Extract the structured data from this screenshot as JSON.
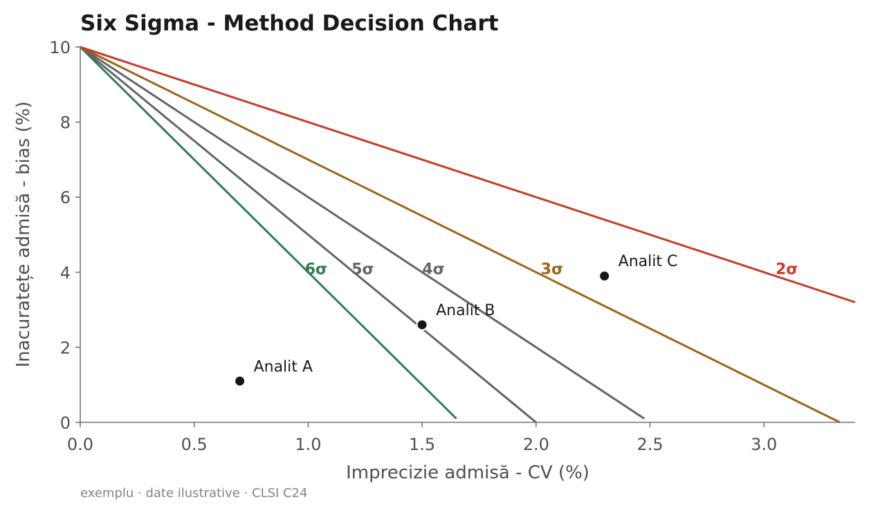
{
  "chart_data": {
    "type": "line",
    "title": "Six Sigma - Method Decision Chart",
    "xlabel": "Imprecizie admisă - CV (%)",
    "ylabel": "Inacuratețe admisă - bias (%)",
    "xlim": [
      0,
      3.4
    ],
    "ylim": [
      0,
      10
    ],
    "x_ticks": [
      "0.0",
      "0.5",
      "1.0",
      "1.5",
      "2.0",
      "2.5",
      "3.0"
    ],
    "x_tick_values": [
      0,
      0.5,
      1.0,
      1.5,
      2.0,
      2.5,
      3.0
    ],
    "y_ticks": [
      "0",
      "2",
      "4",
      "6",
      "8",
      "10"
    ],
    "y_tick_values": [
      0,
      2,
      4,
      6,
      8,
      10
    ],
    "grid": false,
    "total_allowable_error": 10,
    "series": [
      {
        "name": "6σ",
        "sigma": 6,
        "color": "#2e7d52",
        "x": [
          0,
          1.65
        ],
        "y": [
          10,
          0.1
        ],
        "label_at": [
          1.035,
          4.1
        ]
      },
      {
        "name": "5σ",
        "sigma": 5,
        "color": "#62646c",
        "x": [
          0,
          2.0
        ],
        "y": [
          10,
          0
        ],
        "label_at": [
          1.24,
          4.1
        ]
      },
      {
        "name": "4σ",
        "sigma": 4,
        "color": "#62646c",
        "x": [
          0,
          2.475
        ],
        "y": [
          10,
          0.1
        ],
        "label_at": [
          1.55,
          4.1
        ]
      },
      {
        "name": "3σ",
        "sigma": 3,
        "color": "#9c6418",
        "x": [
          0,
          3.333
        ],
        "y": [
          10,
          0
        ],
        "label_at": [
          2.07,
          4.1
        ]
      },
      {
        "name": "2σ",
        "sigma": 2,
        "color": "#c83a2a",
        "x": [
          0,
          3.4
        ],
        "y": [
          10,
          3.2
        ],
        "label_at": [
          3.1,
          4.1
        ]
      }
    ],
    "points": [
      {
        "name": "Analit A",
        "x": 0.7,
        "y": 1.1
      },
      {
        "name": "Analit B",
        "x": 1.5,
        "y": 2.6
      },
      {
        "name": "Analit C",
        "x": 2.3,
        "y": 3.9
      }
    ],
    "footer": "exemplu · date ilustrative · CLSI C24",
    "colors": {
      "axis": "#70747c",
      "text": "#4b4f58",
      "title": "#1a1a1a",
      "point": "#15161a",
      "footer": "#80848c"
    }
  }
}
